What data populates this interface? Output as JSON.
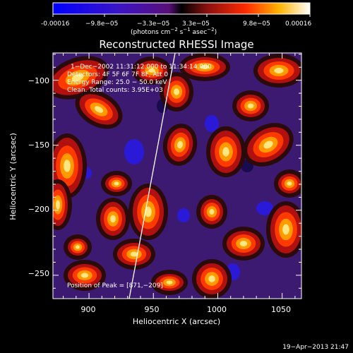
{
  "colorbar": {
    "ticks": [
      "-0.00016",
      "−9.8e−05",
      "−3.3e−05",
      "3.3e−05",
      "9.8e−05",
      "0.00016"
    ],
    "unit_prefix": "(photons cm",
    "unit_exp1": "−2",
    "unit_mid": " s",
    "unit_exp2": "−1",
    "unit_asec": " asec",
    "unit_exp3": "−2",
    "unit_close": ")"
  },
  "title": "Reconstructed RHESSI Image",
  "annotation": {
    "line1": "1−Dec−2002 11:31:12.000 to 11:34:14.000",
    "line2": "Detectors: 4F 5F 6F 7F 8F, Att 0",
    "line3": "Energy Range: 25.0 − 50.0 keV",
    "line4": "Clean.  Total counts: 3.95E+03",
    "peak": "Position of Peak = [871,−209]"
  },
  "axes": {
    "x_label": "Heliocentric X (arcsec)",
    "y_label": "Heliocentric Y (arcsec)",
    "x_ticks": [
      "900",
      "950",
      "1000",
      "1050"
    ],
    "y_ticks": [
      "−100",
      "−150",
      "−200",
      "−250"
    ],
    "x_tick_values": [
      900,
      950,
      1000,
      1050
    ],
    "y_tick_values": [
      -100,
      -150,
      -200,
      -250
    ],
    "x_range": [
      872,
      1065
    ],
    "y_range": [
      -268,
      -79
    ]
  },
  "timestamp": "19−Apr−2013 21:47",
  "colors": {
    "background": "#000000",
    "text": "#ffffff",
    "limb": "#ffffff"
  }
}
